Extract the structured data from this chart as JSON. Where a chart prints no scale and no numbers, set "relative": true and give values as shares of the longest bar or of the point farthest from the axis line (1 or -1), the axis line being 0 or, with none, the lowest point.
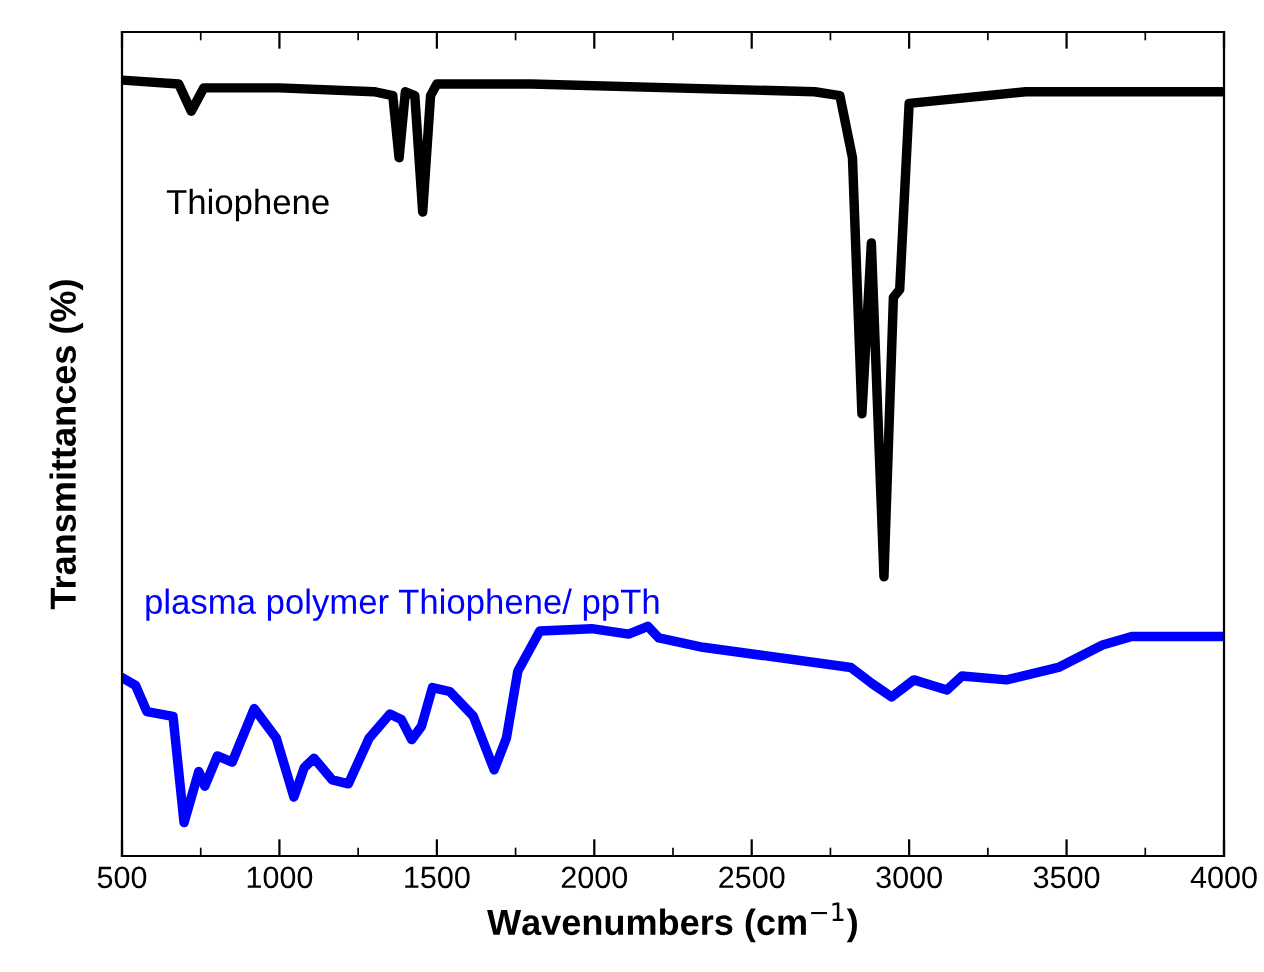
{
  "chart_data": {
    "type": "line",
    "relative": true,
    "xlabel": "Wavenumbers (cm$^{−1}$)",
    "ylabel": "Transmittances (%)",
    "xlim": [
      500,
      4000
    ],
    "xticks": [
      500,
      1000,
      1500,
      2000,
      2500,
      3000,
      3500,
      4000
    ],
    "grid": false,
    "legend": false,
    "marker": "none",
    "line_style": "solid",
    "series": [
      {
        "name": "Thiophene",
        "color": "#000000",
        "x": [
          500,
          680,
          720,
          760,
          1000,
          1300,
          1360,
          1380,
          1400,
          1430,
          1455,
          1480,
          1500,
          1800,
          2700,
          2780,
          2820,
          2850,
          2880,
          2920,
          2950,
          2970,
          3000,
          3370,
          4000
        ],
        "values": [
          1.0,
          0.995,
          0.96,
          0.99,
          0.99,
          0.985,
          0.98,
          0.9,
          0.985,
          0.98,
          0.83,
          0.98,
          0.995,
          0.995,
          0.985,
          0.98,
          0.9,
          0.57,
          0.79,
          0.36,
          0.72,
          0.73,
          0.97,
          0.985,
          0.985
        ]
      },
      {
        "name": "plasma polymer Thiophene/ ppTh",
        "color": "#0000ff",
        "x": [
          500,
          543,
          579,
          662,
          697,
          744,
          763,
          803,
          850,
          920,
          990,
          1046,
          1079,
          1110,
          1168,
          1219,
          1285,
          1351,
          1387,
          1420,
          1451,
          1486,
          1541,
          1616,
          1682,
          1721,
          1757,
          1827,
          1992,
          2109,
          2170,
          2205,
          2345,
          2815,
          2883,
          2944,
          3015,
          3120,
          3168,
          3309,
          3474,
          3614,
          3707,
          4000
        ],
        "values": [
          0.23,
          0.22,
          0.186,
          0.18,
          0.043,
          0.109,
          0.09,
          0.129,
          0.121,
          0.19,
          0.152,
          0.076,
          0.114,
          0.126,
          0.098,
          0.093,
          0.152,
          0.183,
          0.176,
          0.15,
          0.167,
          0.217,
          0.212,
          0.18,
          0.111,
          0.152,
          0.238,
          0.29,
          0.293,
          0.286,
          0.296,
          0.281,
          0.269,
          0.243,
          0.222,
          0.205,
          0.227,
          0.214,
          0.232,
          0.227,
          0.243,
          0.272,
          0.283,
          0.283
        ]
      }
    ]
  }
}
